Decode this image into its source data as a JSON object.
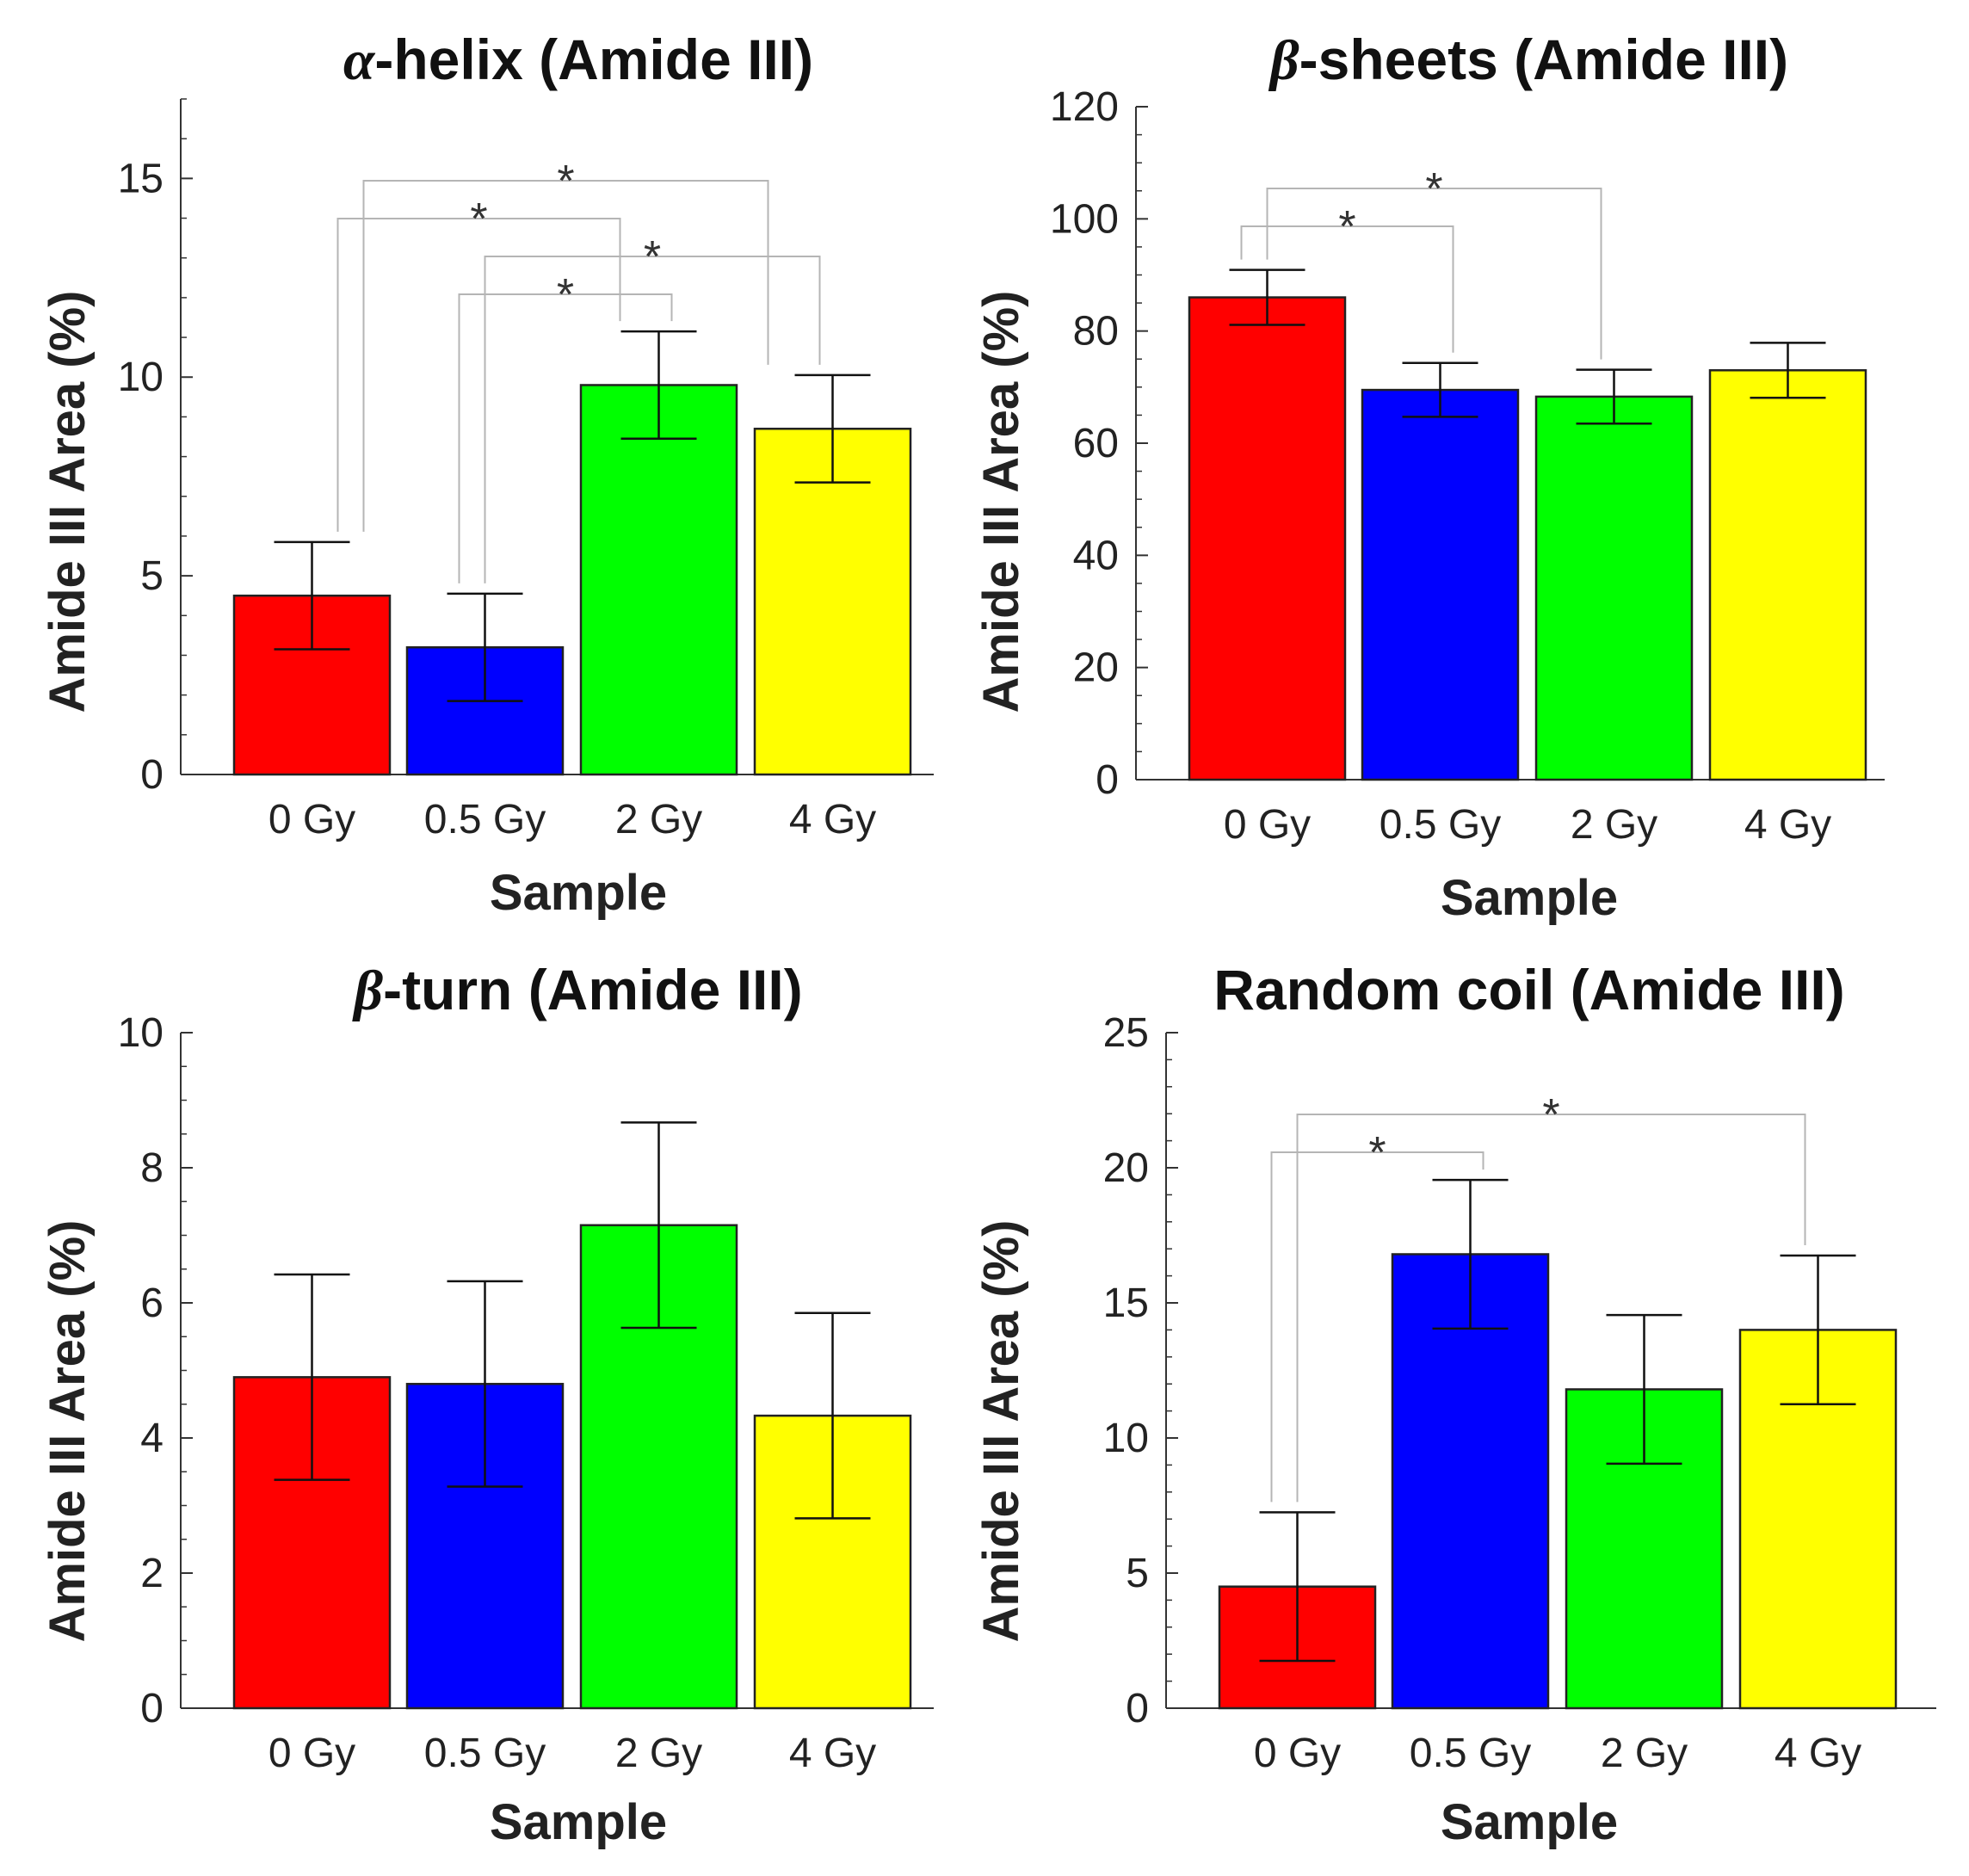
{
  "colors": {
    "bar_fills": [
      "#ff0000",
      "#0000ff",
      "#00ff00",
      "#ffff00"
    ],
    "bar_stroke": "#222222",
    "axis": "#333333",
    "bracket": "#b5b5b5",
    "text": "#222222"
  },
  "chart_data": [
    {
      "type": "bar",
      "title_greek": "α",
      "title_rest": "-helix (Amide III)",
      "xlabel": "Sample",
      "ylabel": "Amide III Area (%)",
      "categories": [
        "0 Gy",
        "0.5 Gy",
        "2 Gy",
        "4 Gy"
      ],
      "values": [
        4.5,
        3.2,
        9.8,
        8.7
      ],
      "errors": [
        1.35,
        1.35,
        1.35,
        1.35
      ],
      "ylim": [
        0,
        17
      ],
      "yticks": [
        0,
        5,
        10,
        15
      ],
      "yminor_step": 1,
      "significance": [
        {
          "from": 0,
          "to": 3,
          "label": "*"
        },
        {
          "from": 0,
          "to": 2,
          "label": "*"
        },
        {
          "from": 1,
          "to": 3,
          "label": "*"
        },
        {
          "from": 1,
          "to": 2,
          "label": "*"
        }
      ]
    },
    {
      "type": "bar",
      "title_greek": "β",
      "title_rest": "-sheets (Amide III)",
      "xlabel": "Sample",
      "ylabel": "Amide III Area (%)",
      "categories": [
        "0 Gy",
        "0.5 Gy",
        "2 Gy",
        "4 Gy"
      ],
      "values": [
        86,
        69.5,
        68.3,
        73
      ],
      "errors": [
        4.9,
        4.8,
        4.8,
        4.9
      ],
      "ylim": [
        0,
        120
      ],
      "yticks": [
        0,
        20,
        40,
        60,
        80,
        100,
        120
      ],
      "yminor_step": 5,
      "significance": [
        {
          "from": 0,
          "to": 2,
          "label": "*"
        },
        {
          "from": 0,
          "to": 1,
          "label": "*"
        }
      ]
    },
    {
      "type": "bar",
      "title_greek": "β",
      "title_rest": "-turn (Amide III)",
      "xlabel": "Sample",
      "ylabel": "Amide III Area (%)",
      "categories": [
        "0 Gy",
        "0.5 Gy",
        "2 Gy",
        "4 Gy"
      ],
      "values": [
        4.9,
        4.8,
        7.15,
        4.33
      ],
      "errors": [
        1.52,
        1.52,
        1.52,
        1.52
      ],
      "ylim": [
        0,
        10
      ],
      "yticks": [
        0,
        2,
        4,
        6,
        8,
        10
      ],
      "yminor_step": 0.5,
      "significance": []
    },
    {
      "type": "bar",
      "title_greek": "",
      "title_rest": "Random coil (Amide III)",
      "xlabel": "Sample",
      "ylabel": "Amide III Area (%)",
      "categories": [
        "0 Gy",
        "0.5 Gy",
        "2 Gy",
        "4 Gy"
      ],
      "values": [
        4.5,
        16.8,
        11.8,
        14
      ],
      "errors": [
        2.75,
        2.75,
        2.75,
        2.75
      ],
      "ylim": [
        0,
        25
      ],
      "yticks": [
        0,
        5,
        10,
        15,
        20,
        25
      ],
      "yminor_step": 1,
      "significance": [
        {
          "from": 0,
          "to": 3,
          "label": "*"
        },
        {
          "from": 0,
          "to": 1,
          "label": "*"
        }
      ]
    }
  ]
}
